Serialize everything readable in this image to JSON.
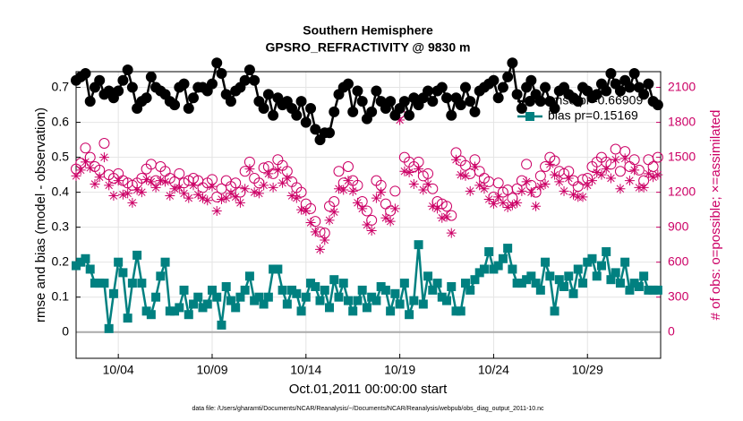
{
  "chart_data": {
    "type": "line",
    "title": "Southern Hemisphere",
    "subtitle": "GPSRO_REFRACTIVITY @ 9830 m",
    "xlabel": "Oct.01,2011 00:00:00 start",
    "ylabel": "rmse and bias (model - observation)",
    "y2label": "# of obs: o=possible; ×=assimilated",
    "footnote": "data file: /Users/gharamti/Documents/NCAR/Reanalysis/~/Documents/NCAR/Reanalysis/webpub/obs_diag_output_2011-10.nc",
    "xlim": [
      1.75,
      32.9
    ],
    "xticks": [
      {
        "value": 4,
        "label": "10/04"
      },
      {
        "value": 9,
        "label": "10/09"
      },
      {
        "value": 14,
        "label": "10/14"
      },
      {
        "value": 19,
        "label": "10/19"
      },
      {
        "value": 24,
        "label": "10/24"
      },
      {
        "value": 29,
        "label": "10/29"
      }
    ],
    "ylim": [
      -0.075,
      0.745
    ],
    "yticks": [
      0,
      0.1,
      0.2,
      0.3,
      0.4,
      0.5,
      0.6,
      0.7
    ],
    "y2lim": [
      -225,
      2235
    ],
    "y2ticks": [
      0,
      300,
      600,
      900,
      1200,
      1500,
      1800,
      2100
    ],
    "grid": true,
    "legend": "top-right",
    "x": [
      1.75,
      2,
      2.25,
      2.5,
      2.75,
      3,
      3.25,
      3.5,
      3.75,
      4,
      4.25,
      4.5,
      4.75,
      5,
      5.25,
      5.5,
      5.75,
      6,
      6.25,
      6.5,
      6.75,
      7,
      7.25,
      7.5,
      7.75,
      8,
      8.25,
      8.5,
      8.75,
      9,
      9.25,
      9.5,
      9.75,
      10,
      10.25,
      10.5,
      10.75,
      11,
      11.25,
      11.5,
      11.75,
      12,
      12.25,
      12.5,
      12.75,
      13,
      13.25,
      13.5,
      13.75,
      14,
      14.25,
      14.5,
      14.75,
      15,
      15.25,
      15.5,
      15.75,
      16,
      16.25,
      16.5,
      16.75,
      17,
      17.25,
      17.5,
      17.75,
      18,
      18.25,
      18.5,
      18.75,
      19,
      19.25,
      19.5,
      19.75,
      20,
      20.25,
      20.5,
      20.75,
      21,
      21.25,
      21.5,
      21.75,
      22,
      22.25,
      22.5,
      22.75,
      23,
      23.25,
      23.5,
      23.75,
      24,
      24.25,
      24.5,
      24.75,
      25,
      25.25,
      25.5,
      25.75,
      26,
      26.25,
      26.5,
      26.75,
      27,
      27.25,
      27.5,
      27.75,
      28,
      28.25,
      28.5,
      28.75,
      29,
      29.25,
      29.5,
      29.75,
      30,
      30.25,
      30.5,
      30.75,
      31,
      31.25,
      31.5,
      31.75,
      32,
      32.25,
      32.5,
      32.75
    ],
    "series": [
      {
        "name": "rmse pr=0.66909",
        "color": "#000000",
        "marker": "circle",
        "line": true,
        "values": [
          0.72,
          0.73,
          0.74,
          0.66,
          0.7,
          0.72,
          0.68,
          0.69,
          0.67,
          0.69,
          0.72,
          0.75,
          0.7,
          0.64,
          0.66,
          0.67,
          0.73,
          0.7,
          0.69,
          0.68,
          0.66,
          0.65,
          0.7,
          0.71,
          0.64,
          0.67,
          0.7,
          0.7,
          0.69,
          0.71,
          0.77,
          0.74,
          0.68,
          0.66,
          0.69,
          0.7,
          0.72,
          0.75,
          0.72,
          0.66,
          0.64,
          0.68,
          0.62,
          0.67,
          0.65,
          0.66,
          0.64,
          0.62,
          0.66,
          0.6,
          0.64,
          0.58,
          0.55,
          0.57,
          0.57,
          0.63,
          0.68,
          0.7,
          0.71,
          0.63,
          0.69,
          0.66,
          0.61,
          0.63,
          0.69,
          0.66,
          0.64,
          0.66,
          0.62,
          0.64,
          0.66,
          0.62,
          0.67,
          0.65,
          0.67,
          0.69,
          0.66,
          0.69,
          0.7,
          0.67,
          0.62,
          0.67,
          0.65,
          0.7,
          0.66,
          0.63,
          0.69,
          0.7,
          0.71,
          0.72,
          0.67,
          0.7,
          0.73,
          0.77,
          0.68,
          0.64,
          0.7,
          0.72,
          0.68,
          0.66,
          0.7,
          0.66,
          0.64,
          0.69,
          0.7,
          0.68,
          0.67,
          0.66,
          0.7,
          0.69,
          0.67,
          0.68,
          0.71,
          0.69,
          0.74,
          0.71,
          0.69,
          0.72,
          0.7,
          0.74,
          0.7,
          0.68,
          0.71,
          0.66,
          0.65
        ]
      },
      {
        "name": "bias pr=0.15169",
        "color": "#008080",
        "marker": "square",
        "line": true,
        "values": [
          0.19,
          0.2,
          0.21,
          0.18,
          0.14,
          0.14,
          0.14,
          0.01,
          0.11,
          0.2,
          0.17,
          0.04,
          0.14,
          0.22,
          0.14,
          0.06,
          0.05,
          0.1,
          0.16,
          0.2,
          0.06,
          0.06,
          0.07,
          0.12,
          0.05,
          0.08,
          0.1,
          0.07,
          0.08,
          0.12,
          0.1,
          0.02,
          0.13,
          0.09,
          0.07,
          0.1,
          0.12,
          0.16,
          0.09,
          0.1,
          0.08,
          0.1,
          0.18,
          0.18,
          0.12,
          0.08,
          0.12,
          0.11,
          0.06,
          0.1,
          0.14,
          0.13,
          0.09,
          0.12,
          0.07,
          0.15,
          0.1,
          0.14,
          0.09,
          0.06,
          0.09,
          0.12,
          0.07,
          0.1,
          0.09,
          0.13,
          0.12,
          0.06,
          0.11,
          0.08,
          0.14,
          0.05,
          0.09,
          0.25,
          0.08,
          0.16,
          0.12,
          0.14,
          0.1,
          0.09,
          0.13,
          0.06,
          0.06,
          0.14,
          0.12,
          0.15,
          0.17,
          0.18,
          0.23,
          0.18,
          0.19,
          0.21,
          0.24,
          0.18,
          0.14,
          0.14,
          0.15,
          0.16,
          0.14,
          0.12,
          0.2,
          0.16,
          0.06,
          0.15,
          0.13,
          0.16,
          0.11,
          0.18,
          0.14,
          0.2,
          0.21,
          0.16,
          0.19,
          0.23,
          0.15,
          0.17,
          0.14,
          0.2,
          0.12,
          0.14,
          0.13,
          0.16,
          0.12,
          0.12,
          0.12
        ]
      },
      {
        "color": "#cc0066",
        "marker": "circle-open",
        "line": false,
        "axis": "y2",
        "values": [
          1400,
          1450,
          1580,
          1500,
          1420,
          1390,
          1620,
          1350,
          1320,
          1360,
          1300,
          1280,
          1260,
          1280,
          1320,
          1400,
          1440,
          1300,
          1420,
          1380,
          1320,
          1290,
          1360,
          1280,
          1300,
          1320,
          1300,
          1240,
          1280,
          1310,
          1160,
          1230,
          1300,
          1250,
          1280,
          1200,
          1380,
          1460,
          1320,
          1280,
          1410,
          1420,
          1360,
          1480,
          1430,
          1380,
          1290,
          1240,
          1200,
          1100,
          1060,
          950,
          860,
          850,
          1080,
          1120,
          1380,
          1280,
          1420,
          1300,
          1260,
          1120,
          1040,
          960,
          1300,
          1260,
          1100,
          1040,
          1210,
          1880,
          1500,
          1460,
          1420,
          1460,
          1340,
          1360,
          1230,
          1120,
          1100,
          1080,
          1000,
          1540,
          1470,
          1430,
          1360,
          1480,
          1380,
          1320,
          1290,
          1160,
          1280,
          1200,
          1220,
          1150,
          1230,
          1300,
          1440,
          1260,
          1200,
          1340,
          1420,
          1500,
          1470,
          1380,
          1360,
          1380,
          1300,
          1250,
          1310,
          1320,
          1420,
          1460,
          1500,
          1460,
          1440,
          1570,
          1380,
          1550,
          1420,
          1480,
          1390,
          1300,
          1480,
          1420,
          1500
        ]
      },
      {
        "color": "#cc0066",
        "marker": "asterisk",
        "line": false,
        "axis": "y2",
        "values": [
          1340,
          1390,
          1460,
          1410,
          1270,
          1330,
          1500,
          1260,
          1170,
          1300,
          1180,
          1190,
          1110,
          1220,
          1200,
          1310,
          1290,
          1240,
          1300,
          1290,
          1170,
          1230,
          1240,
          1190,
          1150,
          1260,
          1180,
          1150,
          1130,
          1250,
          1040,
          1140,
          1150,
          1190,
          1160,
          1110,
          1230,
          1400,
          1200,
          1190,
          1260,
          1360,
          1240,
          1390,
          1280,
          1320,
          1170,
          1150,
          1050,
          1040,
          940,
          860,
          710,
          790,
          960,
          1030,
          1230,
          1220,
          1300,
          1210,
          1110,
          1060,
          920,
          870,
          1150,
          1200,
          980,
          950,
          1060,
          1820,
          1380,
          1370,
          1270,
          1400,
          1220,
          1270,
          1080,
          1060,
          980,
          990,
          850,
          1480,
          1350,
          1340,
          1210,
          1420,
          1260,
          1230,
          1140,
          1100,
          1160,
          1110,
          1070,
          1090,
          1110,
          1210,
          1290,
          1200,
          1080,
          1250,
          1270,
          1440,
          1350,
          1290,
          1210,
          1320,
          1180,
          1160,
          1160,
          1260,
          1300,
          1370,
          1350,
          1400,
          1320,
          1480,
          1230,
          1490,
          1300,
          1390,
          1240,
          1240,
          1360,
          1330,
          1350
        ]
      }
    ]
  }
}
